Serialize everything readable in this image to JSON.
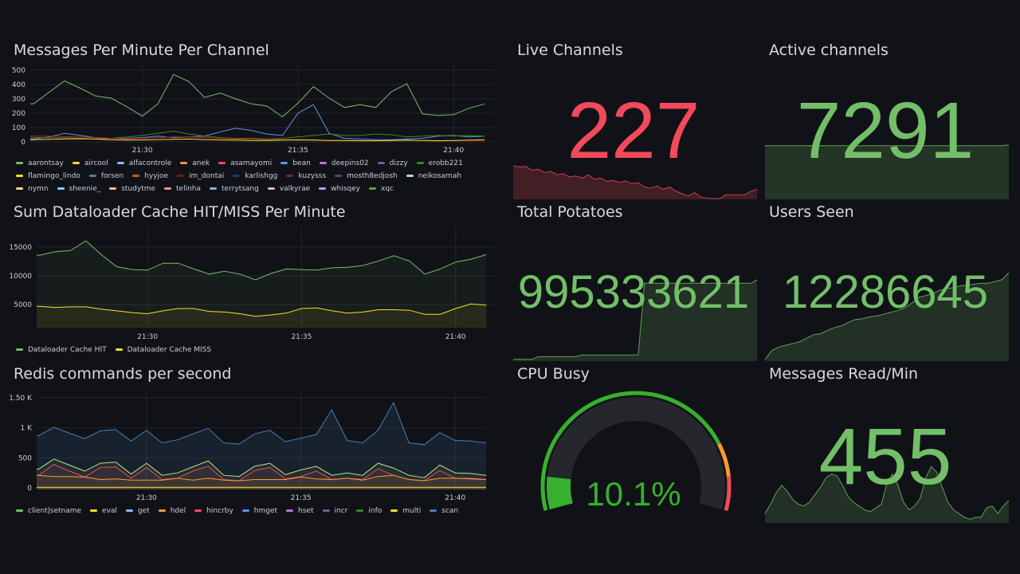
{
  "colors": {
    "bg": "#111217",
    "green": "#73bf69",
    "red": "#f2495c",
    "orange": "#ff9830",
    "grid": "#24262c"
  },
  "time_ticks": [
    {
      "m": 30,
      "label": "21:30"
    },
    {
      "m": 35,
      "label": "21:35"
    },
    {
      "m": 40,
      "label": "21:40"
    }
  ],
  "x_minutes": [
    26.5,
    27,
    27.5,
    28,
    28.5,
    29,
    29.5,
    30,
    30.5,
    31,
    31.5,
    32,
    32.5,
    33,
    33.5,
    34,
    34.5,
    35,
    35.5,
    36,
    36.5,
    37,
    37.5,
    38,
    38.5,
    39,
    39.5,
    40,
    40.5,
    41
  ],
  "chart_data": [
    {
      "type": "line",
      "title": "Messages Per Minute Per Channel",
      "ylim": [
        0,
        500
      ],
      "y_ticks": [
        "0",
        "100",
        "200",
        "300",
        "400",
        "500"
      ],
      "y_tick_values": [
        0,
        100,
        200,
        300,
        400,
        500
      ],
      "xlim": [
        26.4,
        41.3
      ],
      "series": [
        {
          "name": "aarontsay",
          "color": "#73bf69",
          "values": [
            265,
            345,
            425,
            375,
            320,
            305,
            245,
            180,
            265,
            470,
            420,
            310,
            340,
            300,
            265,
            250,
            175,
            270,
            385,
            305,
            240,
            260,
            240,
            350,
            405,
            195,
            185,
            190,
            235,
            265
          ]
        },
        {
          "name": "bean",
          "color": "#5794f2",
          "values": [
            20,
            35,
            60,
            45,
            30,
            25,
            25,
            30,
            40,
            30,
            35,
            40,
            70,
            95,
            80,
            55,
            45,
            200,
            260,
            60,
            25,
            20,
            15,
            15,
            20,
            25,
            40,
            45,
            35,
            40
          ]
        },
        {
          "name": "erobb221",
          "color": "#37872d",
          "values": [
            30,
            30,
            30,
            25,
            20,
            25,
            35,
            45,
            60,
            75,
            55,
            40,
            30,
            25,
            25,
            20,
            25,
            35,
            45,
            55,
            45,
            45,
            55,
            50,
            35,
            40,
            45,
            40,
            45,
            40
          ]
        },
        {
          "name": "anek",
          "color": "#c4162a",
          "values": [
            40,
            40,
            38,
            35,
            30,
            25,
            20,
            25,
            30,
            35,
            35,
            30,
            25,
            20,
            20,
            15,
            15,
            15,
            15,
            10,
            10,
            10,
            10,
            10,
            10,
            10,
            10,
            10,
            10,
            10
          ]
        },
        {
          "name": "aircool",
          "color": "#fade2a",
          "values": [
            15,
            18,
            20,
            22,
            20,
            15,
            12,
            14,
            16,
            18,
            20,
            16,
            14,
            12,
            10,
            10,
            12,
            14,
            12,
            10,
            10,
            8,
            8,
            10,
            12,
            10,
            8,
            10,
            12,
            15
          ]
        }
      ],
      "legend": [
        {
          "name": "aarontsay",
          "color": "#73bf69"
        },
        {
          "name": "aircool",
          "color": "#fade2a"
        },
        {
          "name": "alfacontrole",
          "color": "#8ab8ff"
        },
        {
          "name": "anek",
          "color": "#ff9830"
        },
        {
          "name": "asamayomi",
          "color": "#f2495c"
        },
        {
          "name": "bean",
          "color": "#5794f2"
        },
        {
          "name": "deepins02",
          "color": "#b877d9"
        },
        {
          "name": "dizzy",
          "color": "#705da0"
        },
        {
          "name": "erobb221",
          "color": "#37872d"
        },
        {
          "name": "flamingo_lindo",
          "color": "#fade2a"
        },
        {
          "name": "forsen",
          "color": "#447ebc"
        },
        {
          "name": "hyyjoe",
          "color": "#c15c17"
        },
        {
          "name": "im_dontai",
          "color": "#890f02"
        },
        {
          "name": "karlishgg",
          "color": "#0a437c"
        },
        {
          "name": "kuzysss",
          "color": "#6d1f62"
        },
        {
          "name": "mosth8edjosh",
          "color": "#584477"
        },
        {
          "name": "neikosamah",
          "color": "#b7dbab"
        },
        {
          "name": "nymn",
          "color": "#f4d598"
        },
        {
          "name": "sheenie_",
          "color": "#70dbed"
        },
        {
          "name": "studytme",
          "color": "#f9ba8f"
        },
        {
          "name": "telinha",
          "color": "#f29191"
        },
        {
          "name": "terrytsang",
          "color": "#82b5d8"
        },
        {
          "name": "valkyrae",
          "color": "#e5a8e2"
        },
        {
          "name": "whisqey",
          "color": "#aea2e0"
        },
        {
          "name": "xqc",
          "color": "#629e51"
        }
      ]
    },
    {
      "type": "area",
      "title": "Sum Dataloader Cache HIT/MISS Per Minute",
      "ylim": [
        0,
        17500
      ],
      "y_ticks": [
        "5000",
        "10000",
        "15000"
      ],
      "y_tick_values": [
        5000,
        10000,
        15000
      ],
      "xlim": [
        26.4,
        41.25
      ],
      "ymin_plot": 1000,
      "series": [
        {
          "name": "Dataloader Cache HIT",
          "color": "#73bf69",
          "values": [
            13600,
            14200,
            14400,
            16100,
            13700,
            11600,
            11100,
            11000,
            12200,
            12200,
            11200,
            10300,
            10800,
            10300,
            9300,
            10400,
            11200,
            11100,
            11000,
            11400,
            11500,
            11800,
            12600,
            13500,
            12600,
            10300,
            11200,
            12400,
            12900,
            13700
          ]
        },
        {
          "name": "Dataloader Cache MISS",
          "color": "#fade2a",
          "values": [
            4700,
            4500,
            4600,
            4600,
            4200,
            3900,
            3600,
            3400,
            3900,
            4300,
            4300,
            3800,
            3700,
            3400,
            2950,
            3200,
            3500,
            4300,
            4400,
            3900,
            3500,
            3700,
            4100,
            4100,
            4000,
            3300,
            3300,
            4300,
            5100,
            4900
          ]
        }
      ]
    },
    {
      "type": "area",
      "title": "Redis commands per second",
      "ylim": [
        0,
        1500
      ],
      "y_ticks": [
        "0",
        "500",
        "1 K",
        "1.50 K"
      ],
      "y_tick_values": [
        0,
        500,
        1000,
        1500
      ],
      "xlim": [
        26.44,
        41.0
      ],
      "series": [
        {
          "name": "scan",
          "color": "#447ebc",
          "values": [
            870,
            1010,
            910,
            820,
            950,
            970,
            780,
            960,
            750,
            800,
            900,
            990,
            750,
            730,
            900,
            960,
            770,
            830,
            890,
            1300,
            790,
            750,
            960,
            1420,
            750,
            720,
            920,
            790,
            780,
            750
          ]
        },
        {
          "name": "client|setname",
          "color": "#b7e27a",
          "values": [
            310,
            480,
            380,
            280,
            410,
            430,
            230,
            410,
            210,
            250,
            350,
            450,
            210,
            190,
            360,
            410,
            220,
            300,
            360,
            210,
            250,
            210,
            410,
            330,
            210,
            170,
            380,
            250,
            240,
            210
          ]
        },
        {
          "name": "hincrby",
          "color": "#f2495c",
          "values": [
            210,
            390,
            280,
            180,
            340,
            350,
            160,
            340,
            140,
            160,
            280,
            360,
            140,
            120,
            290,
            340,
            150,
            190,
            280,
            140,
            160,
            140,
            320,
            210,
            140,
            120,
            290,
            160,
            160,
            140
          ]
        },
        {
          "name": "hdel",
          "color": "#ff9830",
          "values": [
            210,
            190,
            190,
            180,
            140,
            150,
            130,
            130,
            130,
            160,
            130,
            160,
            130,
            120,
            140,
            140,
            140,
            180,
            150,
            140,
            160,
            130,
            190,
            210,
            140,
            120,
            160,
            160,
            150,
            140
          ]
        },
        {
          "name": "eval",
          "color": "#fade2a",
          "values": [
            10,
            10,
            10,
            10,
            10,
            10,
            10,
            10,
            10,
            10,
            10,
            10,
            10,
            10,
            10,
            10,
            10,
            10,
            10,
            10,
            10,
            10,
            10,
            10,
            10,
            10,
            10,
            10,
            10,
            10
          ]
        }
      ],
      "legend": [
        {
          "name": "client|setname",
          "color": "#73bf69"
        },
        {
          "name": "eval",
          "color": "#fade2a"
        },
        {
          "name": "get",
          "color": "#8ab8ff"
        },
        {
          "name": "hdel",
          "color": "#ff9830"
        },
        {
          "name": "hincrby",
          "color": "#f2495c"
        },
        {
          "name": "hmget",
          "color": "#5794f2"
        },
        {
          "name": "hset",
          "color": "#b877d9"
        },
        {
          "name": "incr",
          "color": "#705da0"
        },
        {
          "name": "info",
          "color": "#37872d"
        },
        {
          "name": "multi",
          "color": "#fade2a"
        },
        {
          "name": "scan",
          "color": "#447ebc"
        }
      ]
    }
  ],
  "stats": {
    "live_channels": {
      "title": "Live Channels",
      "value": "227",
      "color": "#f2495c",
      "spark": [
        60,
        58,
        59,
        52,
        54,
        48,
        50,
        44,
        46,
        40,
        42,
        38,
        44,
        36,
        38,
        32,
        34,
        30,
        33,
        28,
        30,
        22,
        20,
        24,
        18,
        22,
        15,
        10,
        6,
        12,
        4,
        2,
        1,
        1,
        8,
        8,
        8,
        8,
        14,
        18
      ]
    },
    "active_channels": {
      "title": "Active channels",
      "value": "7291",
      "color": "#73bf69",
      "spark": [
        30,
        30,
        30,
        30,
        30,
        30,
        30,
        30,
        30,
        30,
        30,
        30,
        30,
        30,
        30,
        30,
        30,
        30,
        30,
        30,
        30,
        30,
        30,
        30,
        30,
        30,
        30,
        30,
        30,
        30.5
      ]
    },
    "total_potatoes": {
      "title": "Total Potatoes",
      "value": "995333621",
      "color": "#73bf69",
      "spark": [
        2,
        2,
        2,
        2,
        5,
        5,
        5,
        5,
        5,
        5,
        5,
        7,
        7,
        7,
        7,
        7,
        7,
        7,
        7,
        7,
        7,
        88,
        88,
        88,
        88,
        88,
        88,
        88,
        88,
        88,
        88,
        88,
        88,
        88,
        88,
        88,
        88,
        88,
        88,
        92
      ]
    },
    "users_seen": {
      "title": "Users Seen",
      "value": "12286645",
      "color": "#73bf69",
      "spark": [
        2,
        12,
        16,
        18,
        20,
        22,
        26,
        30,
        31,
        35,
        38,
        40,
        44,
        47,
        48,
        50,
        51,
        53,
        55,
        57,
        60,
        65,
        72,
        74,
        76,
        80,
        82,
        83,
        85,
        86,
        87,
        88,
        88,
        90,
        92,
        100
      ]
    },
    "cpu_busy": {
      "title": "CPU Busy",
      "value": "10.1%",
      "percent": 10.1,
      "thresholds": [
        {
          "from": 0,
          "to": 80,
          "color": "#37b02f"
        },
        {
          "from": 80,
          "to": 90,
          "color": "#ff9830"
        },
        {
          "from": 90,
          "to": 100,
          "color": "#f2495c"
        }
      ]
    },
    "messages_read": {
      "title": "Messages Read/Min",
      "value": "455",
      "color": "#73bf69",
      "spark": [
        10,
        20,
        32,
        40,
        34,
        25,
        20,
        18,
        22,
        30,
        38,
        48,
        52,
        50,
        40,
        28,
        22,
        18,
        14,
        12,
        16,
        20,
        42,
        52,
        40,
        22,
        14,
        18,
        26,
        48,
        60,
        54,
        38,
        22,
        14,
        10,
        6,
        4,
        6,
        6,
        16,
        18,
        10,
        18,
        24
      ]
    }
  }
}
